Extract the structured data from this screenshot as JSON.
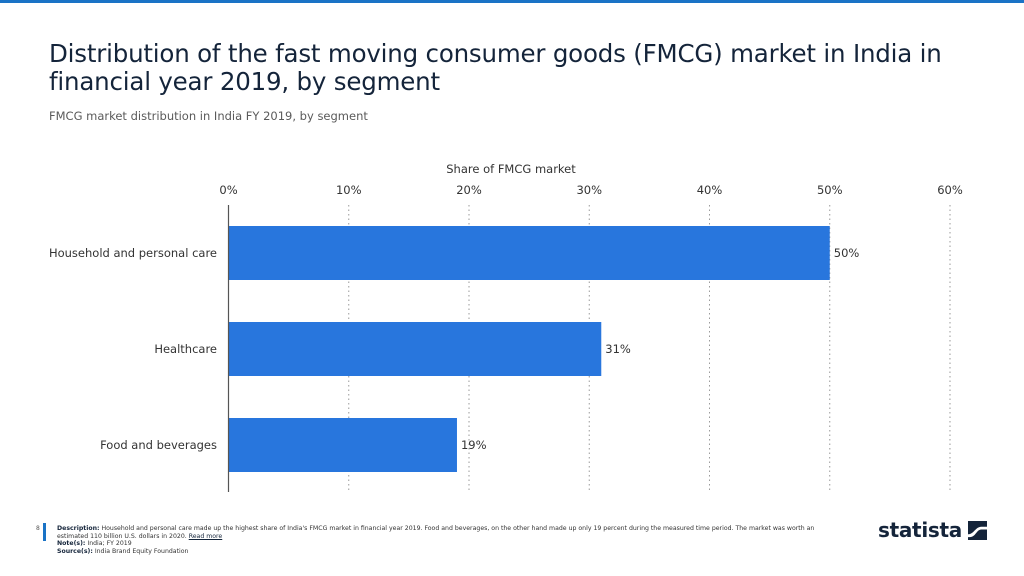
{
  "header": {
    "title": "Distribution of the fast moving consumer goods (FMCG) market in India in financial year 2019, by segment",
    "subtitle": "FMCG market distribution in India FY 2019, by segment"
  },
  "chart_data": {
    "type": "bar",
    "orientation": "horizontal",
    "title": "Distribution of the fast moving consumer goods (FMCG) market in India in financial year 2019, by segment",
    "subtitle": "FMCG market distribution in India FY 2019, by segment",
    "xlabel": "Share of FMCG market",
    "ylabel": "",
    "categories": [
      "Household and personal care",
      "Healthcare",
      "Food and beverages"
    ],
    "values": [
      50,
      31,
      19
    ],
    "data_labels": [
      "50%",
      "31%",
      "19%"
    ],
    "xlim": [
      0,
      60
    ],
    "ticks": [
      0,
      10,
      20,
      30,
      40,
      50,
      60
    ],
    "tick_labels": [
      "0%",
      "10%",
      "20%",
      "30%",
      "40%",
      "50%",
      "60%"
    ],
    "grid": true,
    "grid_style": "dotted vertical",
    "bar_color": "#2876dd",
    "axis_position": "top"
  },
  "footer": {
    "page_number": "8",
    "description_label": "Description:",
    "description": "Household and personal care made up the highest share of India's FMCG market in financial year 2019. Food and beverages, on the other hand made up only 19 percent during the measured time period. The market was worth an estimated 110 billion U.S. dollars in 2020.",
    "read_more": "Read more",
    "notes_label": "Note(s):",
    "notes": "India; FY 2019",
    "sources_label": "Source(s):",
    "sources": "India Brand Equity Foundation"
  },
  "brand": {
    "logo_text": "statista",
    "logo_icon": "statista-logo-icon",
    "accent_color": "#1a73c6"
  }
}
